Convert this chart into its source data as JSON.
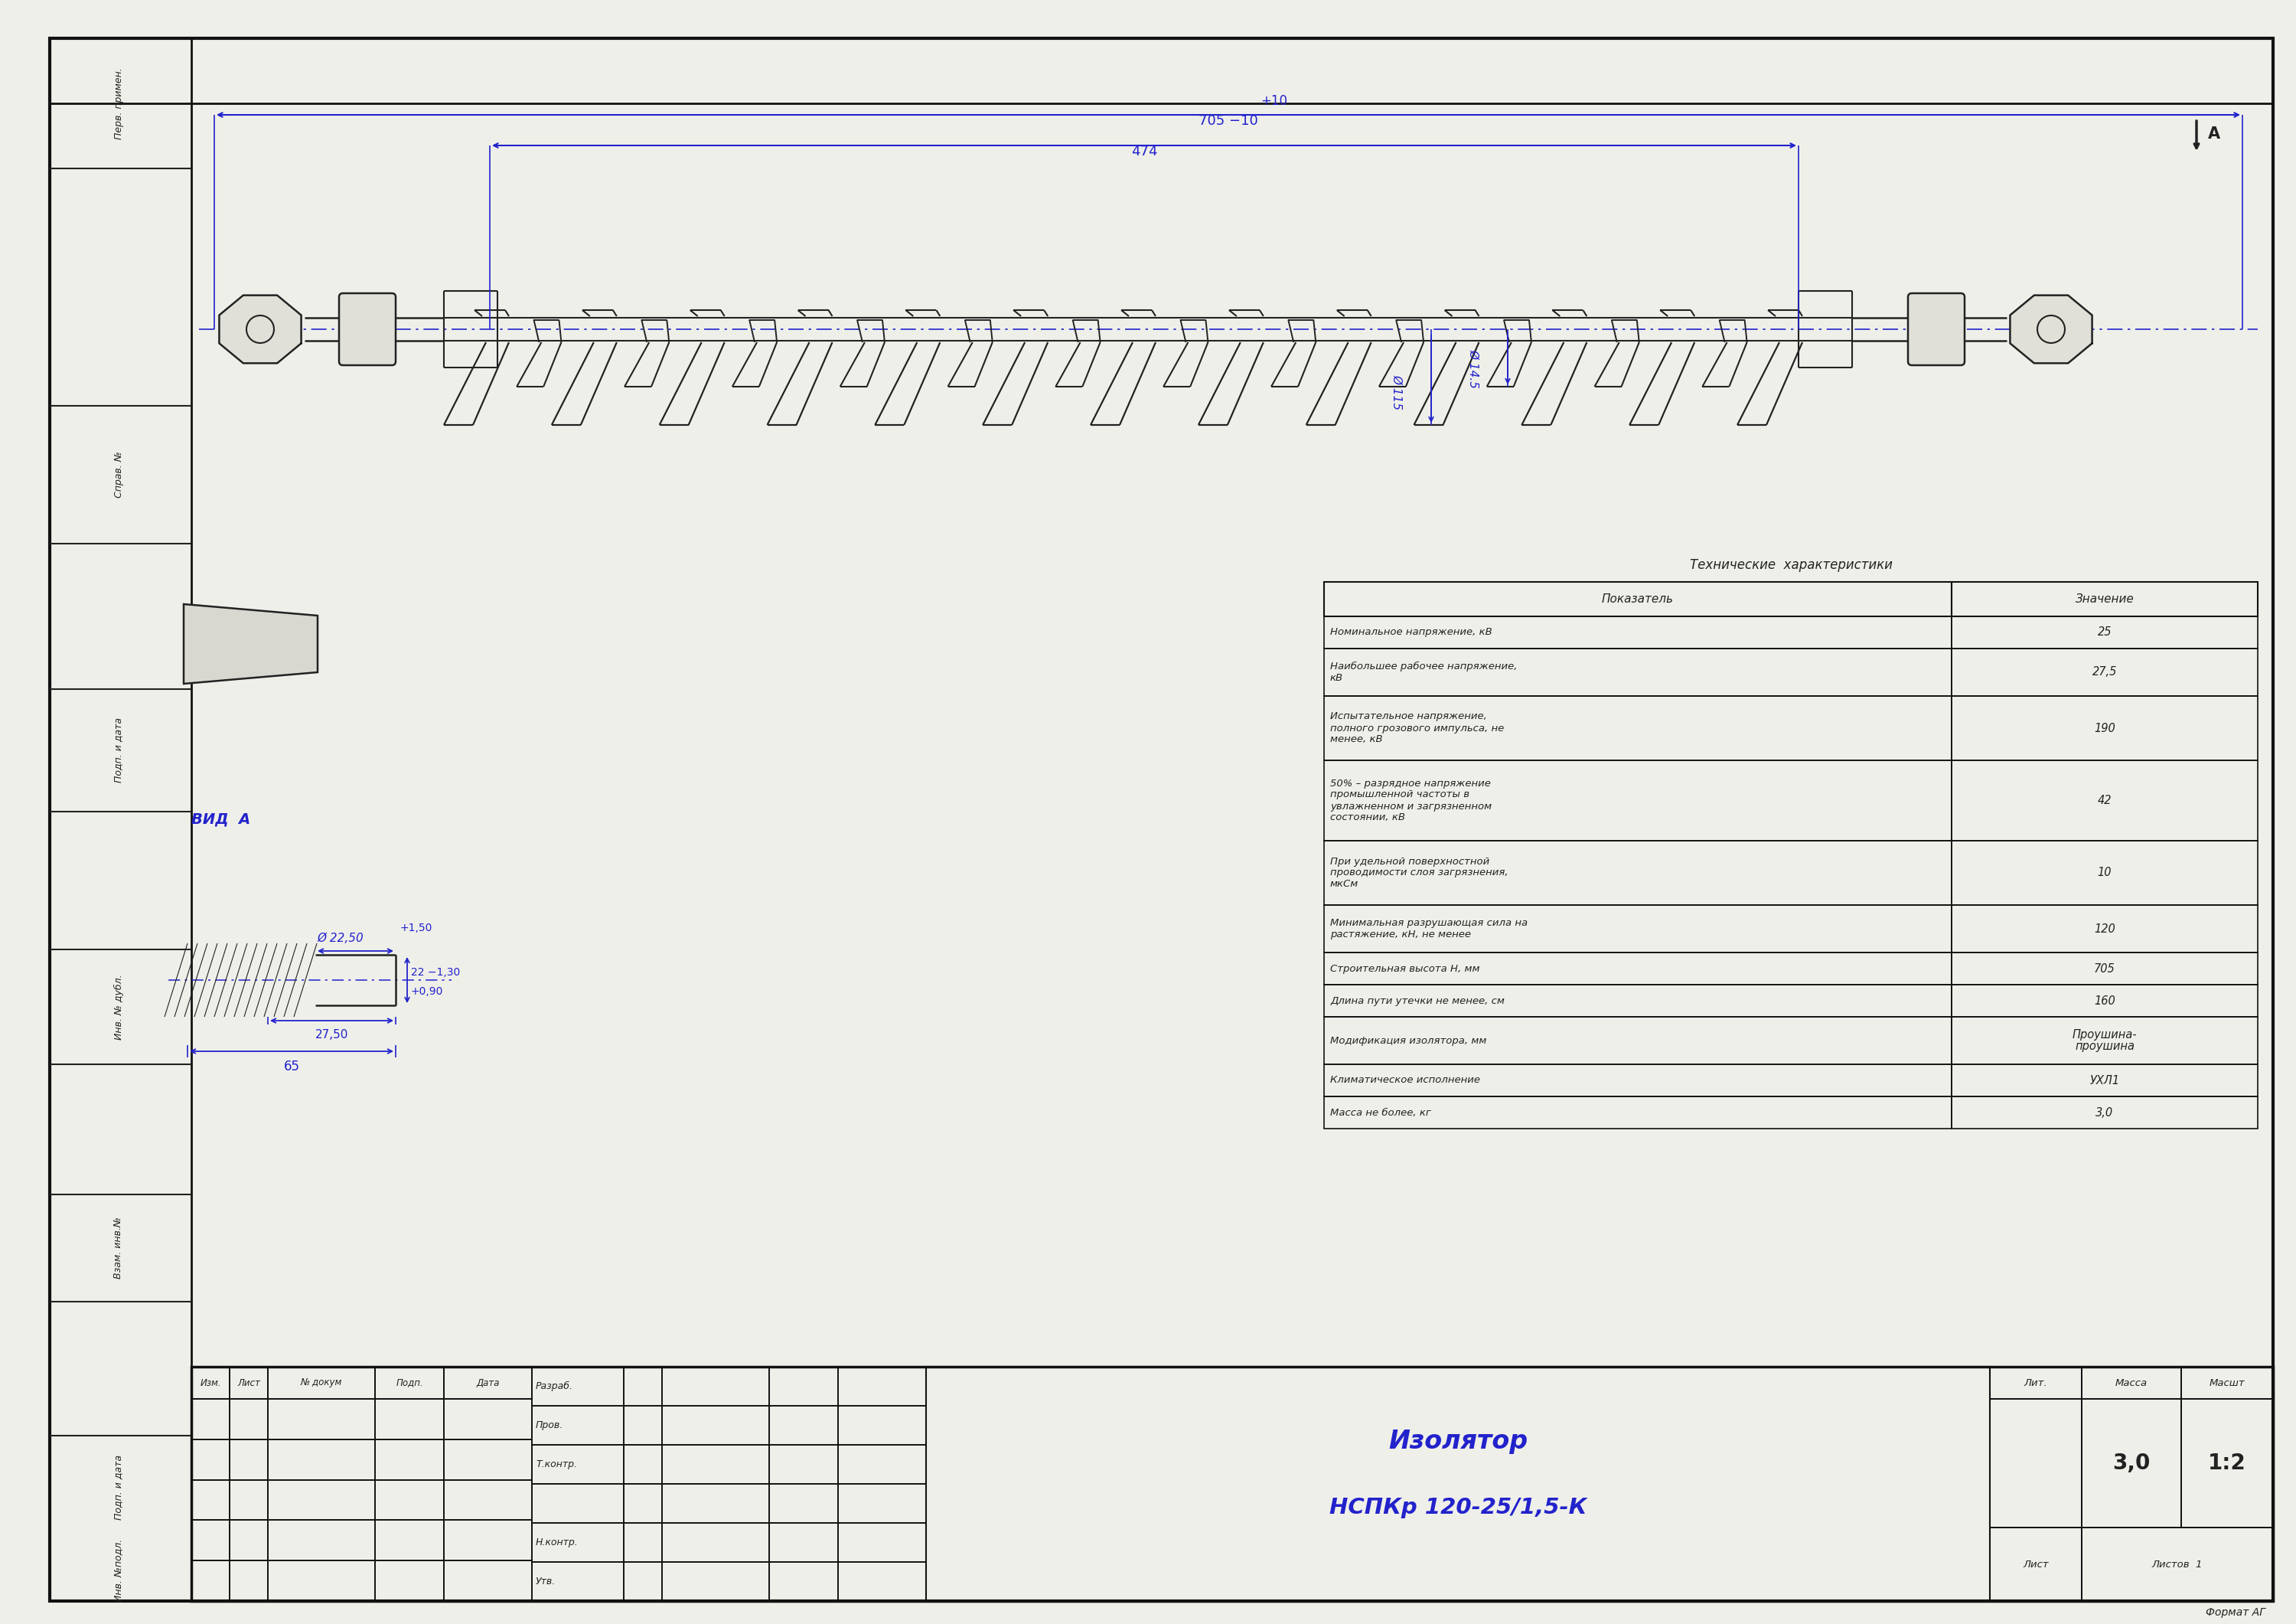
{
  "bg_color": "#efefea",
  "border_color": "#111111",
  "blue_color": "#2222cc",
  "drawing_color": "#222222",
  "title": "Изолятор",
  "subtitle": "НСПКр 120-25/1,5-К",
  "tech_title": "Технические  характеристики",
  "table_headers": [
    "Показатель",
    "Значение"
  ],
  "table_rows": [
    [
      "Номинальное напряжение, кВ",
      "25"
    ],
    [
      "Наибольшее рабочее напряжение,\nкВ",
      "27,5"
    ],
    [
      "Испытательное напряжение,\nполного грозового импульса, не\nменее, кВ",
      "190"
    ],
    [
      "50% – разрядное напряжение\nпромышленной частоты в\nувлажненном и загрязненном\nсостоянии, кВ",
      "42"
    ],
    [
      "При удельной поверхностной\nпроводимости слоя загрязнения,\nмкСм",
      "10"
    ],
    [
      "Минимальная разрушающая сила на\nрастяжение, кН, не менее",
      "120"
    ],
    [
      "Строительная высота Н, мм",
      "705"
    ],
    [
      "Длина пути утечки не менее, см",
      "160"
    ],
    [
      "Модификация изолятора, мм",
      "Проушина-\nпроушина"
    ],
    [
      "Климатическое исполнение",
      "УХЛ1"
    ],
    [
      "Масса не более, кг",
      "3,0"
    ]
  ],
  "mass_value": "3,0",
  "scale_value": "1:2",
  "sheet_label": "Лист",
  "sheets_label": "Листов  1",
  "lit_label": "Лит.",
  "massa_label": "Масса",
  "masst_label": "Масшт",
  "format_label": "Формат АГ",
  "view_label": "ВИД  А",
  "arrow_label": "A",
  "dim_705": "705 −10",
  "dim_705_plus": "+10",
  "dim_474": "474",
  "dim_d115": "Ø 115",
  "dim_d145": "Ø 14.5",
  "dim_d2250": "Ø 22,50",
  "dim_plus150": "+1,50",
  "dim_2750": "27,50",
  "dim_65": "65",
  "dim_090": "+0,90",
  "dim_130": "22 −1,30",
  "izm_label": "Изм.",
  "list_label": "Лист",
  "dokum_label": "№ докум",
  "podp_label": "Подп.",
  "data_label": "Дата",
  "razrab_label": "Разраб.",
  "prov_label": "Пров.",
  "tkont_label": "Т.контр.",
  "nkont_label": "Н.контр.",
  "utv_label": "Утв.",
  "perv_label": "Перв. примен.",
  "sprav_label": "Справ. №",
  "podp_data_label": "Подп. и дата",
  "inv_dubl_label": "Инв. № дубл.",
  "vzam_label": "Взам. инв.№",
  "inv_podl_label": "Инв. №подл."
}
